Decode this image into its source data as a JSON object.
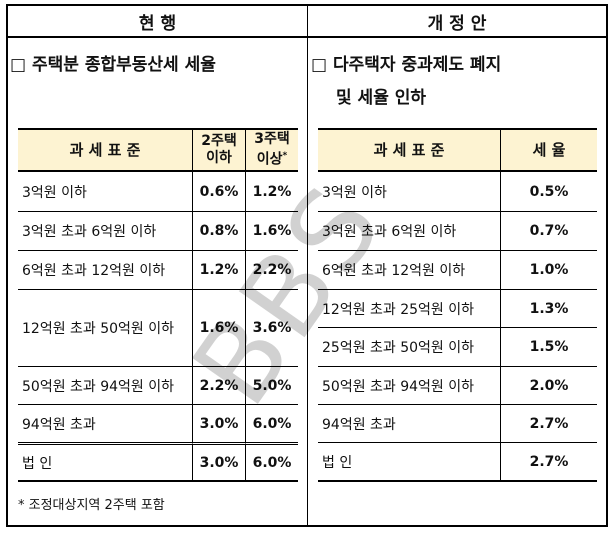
{
  "header": {
    "left": "현 행",
    "right": "개 정 안"
  },
  "left": {
    "title": "□ 주택분 종합부동산세 세율",
    "table": {
      "head": [
        "과 세 표 준",
        [
          "2주택",
          "이하"
        ],
        [
          "3주택",
          "이상",
          "*"
        ]
      ],
      "rows": [
        [
          "3억원 이하",
          "0.6%",
          "1.2%"
        ],
        [
          "3억원 초과 6억원 이하",
          "0.8%",
          "1.6%"
        ],
        [
          "6억원 초과 12억원 이하",
          "1.2%",
          "2.2%"
        ],
        [
          "12억원 초과 50억원 이하",
          "1.6%",
          "3.6%"
        ],
        [
          "50억원 초과 94억원 이하",
          "2.2%",
          "5.0%"
        ],
        [
          "94억원 초과",
          "3.0%",
          "6.0%"
        ],
        [
          "법 인",
          "3.0%",
          "6.0%"
        ]
      ]
    },
    "note": "* 조정대상지역 2주택 포함"
  },
  "right": {
    "title": [
      "□ 다주택자 중과제도 폐지",
      "및 세율 인하"
    ],
    "table": {
      "head": [
        "과 세 표 준",
        "세 율"
      ],
      "rows": [
        [
          "3억원 이하",
          "0.5%"
        ],
        [
          "3억원 초과 6억원 이하",
          "0.7%"
        ],
        [
          "6억원 초과 12억원 이하",
          "1.0%"
        ],
        [
          "12억원 초과 25억원 이하",
          "1.3%"
        ],
        [
          "25억원 초과 50억원 이하",
          "1.5%"
        ],
        [
          "50억원 초과 94억원 이하",
          "2.0%"
        ],
        [
          "94억원 초과",
          "2.7%"
        ],
        [
          "법 인",
          "2.7%"
        ]
      ]
    }
  },
  "watermark": "BBS"
}
